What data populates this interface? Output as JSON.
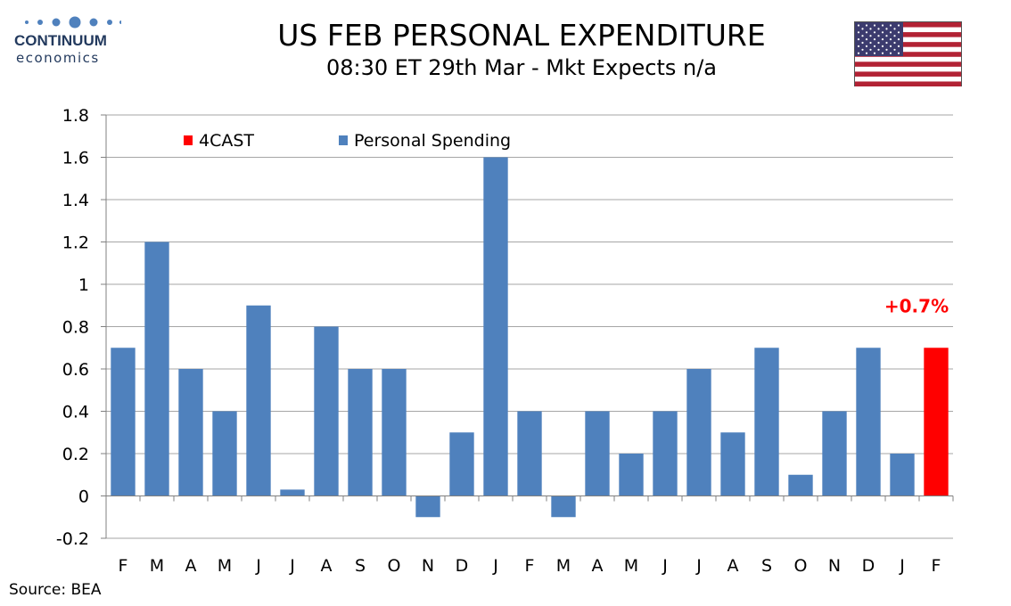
{
  "header": {
    "title": "US FEB PERSONAL EXPENDITURE",
    "subtitle": "08:30 ET 29th Mar - Mkt Expects n/a"
  },
  "logo": {
    "name": "CONTINUUM",
    "sub": "economics",
    "color": "#233a5e"
  },
  "flag": {
    "icon": "us-flag-icon"
  },
  "footer": {
    "source": "Source: BEA"
  },
  "chart_data": {
    "type": "bar",
    "categories": [
      "F",
      "M",
      "A",
      "M",
      "J",
      "J",
      "A",
      "S",
      "O",
      "N",
      "D",
      "J",
      "F",
      "M",
      "A",
      "M",
      "J",
      "J",
      "A",
      "S",
      "O",
      "N",
      "D",
      "J",
      "F"
    ],
    "series": [
      {
        "name": "Personal Spending",
        "color": "#4f81bd",
        "values": [
          0.7,
          1.2,
          0.6,
          0.4,
          0.9,
          0.03,
          0.8,
          0.6,
          0.6,
          -0.1,
          0.3,
          1.6,
          0.4,
          -0.1,
          0.4,
          0.2,
          0.4,
          0.6,
          0.3,
          0.7,
          0.1,
          0.4,
          0.7,
          0.2,
          null
        ]
      },
      {
        "name": "4CAST",
        "color": "#ff0000",
        "values": [
          null,
          null,
          null,
          null,
          null,
          null,
          null,
          null,
          null,
          null,
          null,
          null,
          null,
          null,
          null,
          null,
          null,
          null,
          null,
          null,
          null,
          null,
          null,
          null,
          0.7
        ]
      }
    ],
    "ylim": [
      -0.2,
      1.8
    ],
    "yticks": [
      -0.2,
      0,
      0.2,
      0.4,
      0.6,
      0.8,
      1,
      1.2,
      1.4,
      1.6,
      1.8
    ],
    "ytick_labels": [
      "-0.2",
      "0",
      "0.2",
      "0.4",
      "0.6",
      "0.8",
      "1",
      "1.2",
      "1.4",
      "1.6",
      "1.8"
    ],
    "grid": true,
    "legend": {
      "placement": "top-left",
      "entries": [
        "4CAST",
        "Personal Spending"
      ]
    },
    "annotations": [
      {
        "text": "+0.7%",
        "category_index": 24,
        "value": 0.7,
        "color": "#ff0000"
      }
    ],
    "xlabel": "",
    "ylabel": ""
  }
}
